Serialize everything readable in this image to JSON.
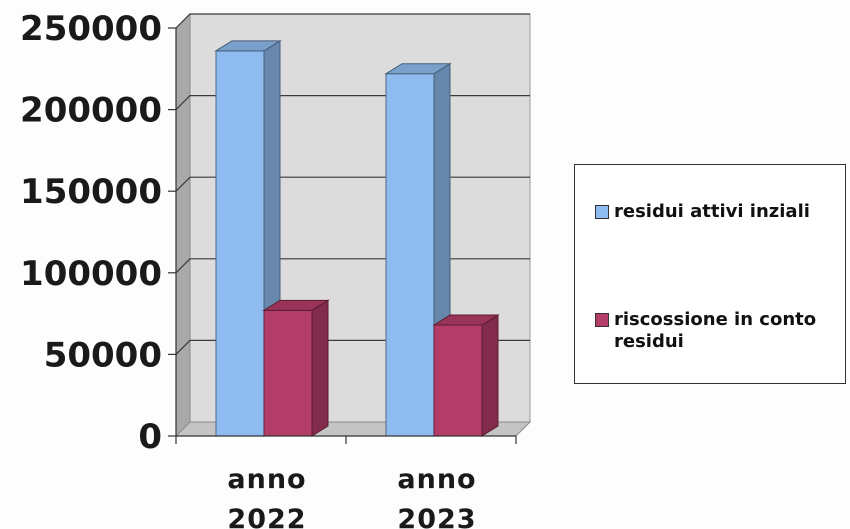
{
  "chart_data": {
    "type": "bar",
    "style": "3d-clustered-column",
    "categories": [
      "anno 2022",
      "anno 2023"
    ],
    "category_lines": [
      [
        "anno",
        "2022"
      ],
      [
        "anno",
        "2023"
      ]
    ],
    "series": [
      {
        "name": "residui attivi inziali",
        "values": [
          236000,
          222000
        ],
        "color": "#8fbcf0"
      },
      {
        "name": "riscossione in conto residui",
        "values": [
          77000,
          68000
        ],
        "color": "#b43c68"
      }
    ],
    "yticks": [
      "0",
      "50000",
      "100000",
      "150000",
      "200000",
      "250000"
    ],
    "ylim": [
      0,
      250000
    ],
    "grid": true,
    "legend_position": "right",
    "title": "",
    "xlabel": "",
    "ylabel": ""
  }
}
